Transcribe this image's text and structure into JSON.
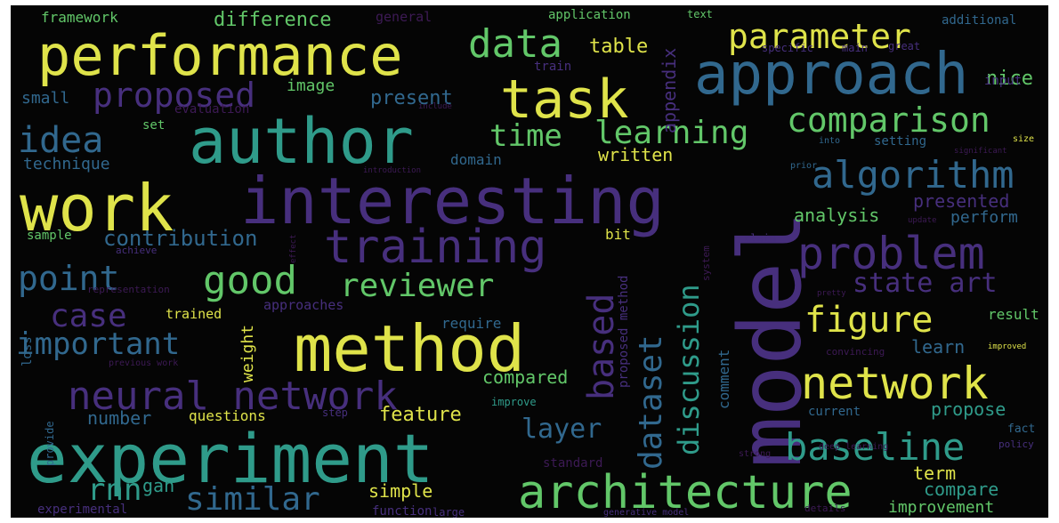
{
  "palette": {
    "background": "#050505",
    "yellow": "#dfe34a",
    "green": "#62c769",
    "teal": "#2f9b8a",
    "blue": "#31688e",
    "purple": "#472f7d",
    "dark": "#3d1a55"
  },
  "words": [
    {
      "text": "model",
      "color": "purple"
    },
    {
      "text": "experiment",
      "color": "teal"
    },
    {
      "text": "interesting",
      "color": "purple"
    },
    {
      "text": "author",
      "color": "teal"
    },
    {
      "text": "performance",
      "color": "yellow"
    },
    {
      "text": "approach",
      "color": "blue"
    },
    {
      "text": "method",
      "color": "yellow"
    },
    {
      "text": "work",
      "color": "yellow"
    },
    {
      "text": "architecture",
      "color": "green"
    },
    {
      "text": "training",
      "color": "purple"
    },
    {
      "text": "task",
      "color": "yellow"
    },
    {
      "text": "network",
      "color": "yellow"
    },
    {
      "text": "problem",
      "color": "purple"
    },
    {
      "text": "neural network",
      "color": "purple"
    },
    {
      "text": "data",
      "color": "green"
    },
    {
      "text": "algorithm",
      "color": "blue"
    },
    {
      "text": "baseline",
      "color": "teal"
    },
    {
      "text": "comparison",
      "color": "green"
    },
    {
      "text": "parameter",
      "color": "yellow"
    },
    {
      "text": "figure",
      "color": "yellow"
    },
    {
      "text": "good",
      "color": "green"
    },
    {
      "text": "proposed",
      "color": "purple"
    },
    {
      "text": "idea",
      "color": "blue"
    },
    {
      "text": "point",
      "color": "blue"
    },
    {
      "text": "reviewer",
      "color": "green"
    },
    {
      "text": "important",
      "color": "blue"
    },
    {
      "text": "similar",
      "color": "blue"
    },
    {
      "text": "case",
      "color": "purple"
    },
    {
      "text": "dataset",
      "color": "blue"
    },
    {
      "text": "discussion",
      "color": "teal"
    },
    {
      "text": "based",
      "color": "purple"
    },
    {
      "text": "learning",
      "color": "green"
    },
    {
      "text": "time",
      "color": "green"
    },
    {
      "text": "rnn",
      "color": "teal"
    },
    {
      "text": "layer",
      "color": "blue"
    },
    {
      "text": "state art",
      "color": "purple"
    },
    {
      "text": "contribution",
      "color": "blue"
    },
    {
      "text": "difference",
      "color": "green"
    },
    {
      "text": "table",
      "color": "yellow"
    },
    {
      "text": "nice",
      "color": "green"
    },
    {
      "text": "present",
      "color": "blue"
    },
    {
      "text": "presented",
      "color": "purple"
    },
    {
      "text": "perform",
      "color": "blue"
    },
    {
      "text": "analysis",
      "color": "green"
    },
    {
      "text": "written",
      "color": "yellow"
    },
    {
      "text": "technique",
      "color": "blue"
    },
    {
      "text": "framework",
      "color": "green"
    },
    {
      "text": "general",
      "color": "dark"
    },
    {
      "text": "application",
      "color": "green"
    },
    {
      "text": "additional",
      "color": "blue"
    },
    {
      "text": "small",
      "color": "blue"
    },
    {
      "text": "image",
      "color": "green"
    },
    {
      "text": "appendix",
      "color": "purple"
    },
    {
      "text": "input",
      "color": "purple"
    },
    {
      "text": "feature",
      "color": "yellow"
    },
    {
      "text": "compared",
      "color": "green"
    },
    {
      "text": "number",
      "color": "blue"
    },
    {
      "text": "questions",
      "color": "yellow"
    },
    {
      "text": "gan",
      "color": "teal"
    },
    {
      "text": "simple",
      "color": "yellow"
    },
    {
      "text": "weight",
      "color": "yellow"
    },
    {
      "text": "learn",
      "color": "blue"
    },
    {
      "text": "propose",
      "color": "teal"
    },
    {
      "text": "compare",
      "color": "teal"
    },
    {
      "text": "term",
      "color": "yellow"
    },
    {
      "text": "result",
      "color": "green"
    },
    {
      "text": "improvement",
      "color": "green"
    },
    {
      "text": "trained",
      "color": "yellow"
    },
    {
      "text": "approaches",
      "color": "purple"
    },
    {
      "text": "require",
      "color": "blue"
    },
    {
      "text": "comment",
      "color": "blue"
    },
    {
      "text": "bit",
      "color": "yellow"
    },
    {
      "text": "sample",
      "color": "green"
    },
    {
      "text": "evaluation",
      "color": "dark"
    },
    {
      "text": "set",
      "color": "green"
    },
    {
      "text": "domain",
      "color": "blue"
    },
    {
      "text": "function",
      "color": "purple"
    },
    {
      "text": "experimental",
      "color": "purple"
    },
    {
      "text": "proposed method",
      "color": "purple"
    },
    {
      "text": "standard",
      "color": "dark"
    },
    {
      "text": "current",
      "color": "blue"
    },
    {
      "text": "loss",
      "color": "blue"
    },
    {
      "text": "setting",
      "color": "blue"
    },
    {
      "text": "train",
      "color": "purple"
    },
    {
      "text": "text",
      "color": "green"
    },
    {
      "text": "specific",
      "color": "purple"
    },
    {
      "text": "main",
      "color": "purple"
    },
    {
      "text": "great",
      "color": "purple"
    },
    {
      "text": "convincing",
      "color": "dark"
    },
    {
      "text": "fact",
      "color": "blue"
    },
    {
      "text": "policy",
      "color": "purple"
    },
    {
      "text": "provide",
      "color": "blue"
    },
    {
      "text": "improve",
      "color": "teal"
    },
    {
      "text": "step",
      "color": "purple"
    },
    {
      "text": "achieve",
      "color": "purple"
    },
    {
      "text": "representation",
      "color": "dark"
    },
    {
      "text": "previous work",
      "color": "dark"
    },
    {
      "text": "claim",
      "color": "purple"
    },
    {
      "text": "system",
      "color": "dark"
    },
    {
      "text": "large",
      "color": "purple"
    },
    {
      "text": "deep learning",
      "color": "dark"
    },
    {
      "text": "generative model",
      "color": "purple"
    },
    {
      "text": "details",
      "color": "dark"
    },
    {
      "text": "strong",
      "color": "dark"
    },
    {
      "text": "size",
      "color": "yellow"
    },
    {
      "text": "into",
      "color": "blue"
    },
    {
      "text": "prior",
      "color": "blue"
    },
    {
      "text": "update",
      "color": "dark"
    },
    {
      "text": "include",
      "color": "dark"
    },
    {
      "text": "pretty",
      "color": "dark"
    },
    {
      "text": "improved",
      "color": "yellow"
    },
    {
      "text": "significant",
      "color": "dark"
    },
    {
      "text": "effect",
      "color": "dark"
    },
    {
      "text": "introduction",
      "color": "dark"
    }
  ]
}
